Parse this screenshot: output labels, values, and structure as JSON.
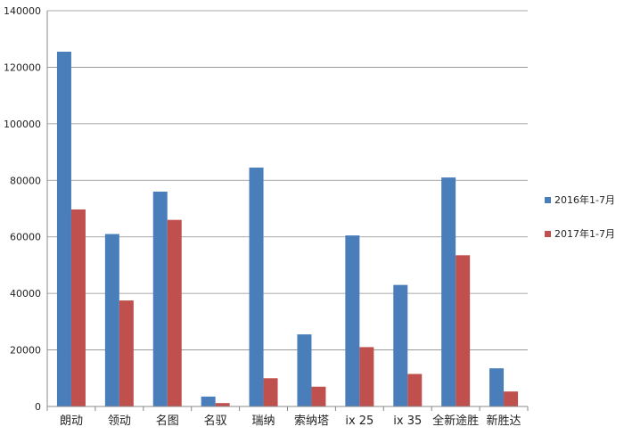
{
  "chart_data": {
    "type": "bar",
    "title": "",
    "xlabel": "",
    "ylabel": "",
    "ylim": [
      0,
      140000
    ],
    "yticks": [
      "0",
      "20000",
      "40000",
      "60000",
      "80000",
      "100000",
      "120000",
      "140000"
    ],
    "grid": true,
    "legend_position": "right",
    "categories": [
      "朗动",
      "领动",
      "名图",
      "名驭",
      "瑞纳",
      "索纳塔",
      "ix 25",
      "ix 35",
      "全新途胜",
      "新胜达"
    ],
    "series": [
      {
        "name": "2016年1-7月",
        "color": "#4a7ebb",
        "values": [
          125500,
          61000,
          76000,
          3500,
          84500,
          25500,
          60500,
          43000,
          81000,
          13500
        ]
      },
      {
        "name": "2017年1-7月",
        "color": "#c0504d",
        "values": [
          69700,
          37500,
          66000,
          1200,
          10000,
          7000,
          21000,
          11500,
          53500,
          5300
        ]
      }
    ]
  }
}
